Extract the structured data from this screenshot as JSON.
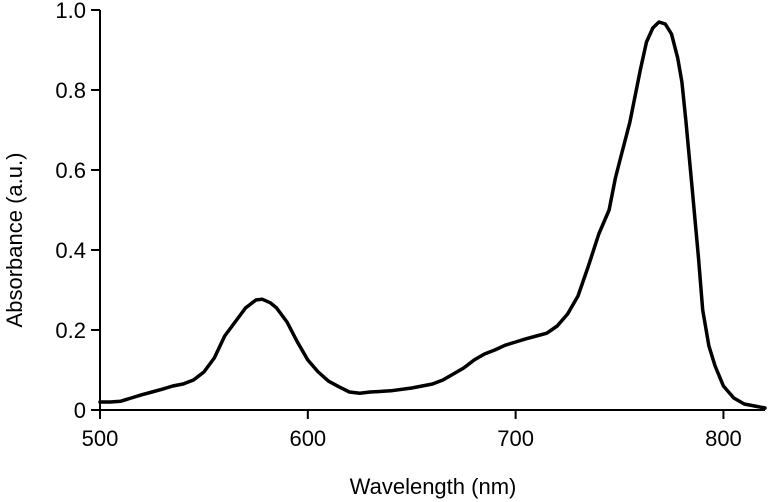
{
  "chart_data": {
    "type": "line",
    "title": "",
    "xlabel": "Wavelength (nm)",
    "ylabel": "Absorbance (a.u.)",
    "xlim": [
      500,
      820
    ],
    "ylim": [
      0,
      1.0
    ],
    "x_ticks": [
      500,
      600,
      700,
      800
    ],
    "x_tick_labels": [
      "500",
      "600",
      "700",
      "800"
    ],
    "y_ticks": [
      0,
      0.2,
      0.4,
      0.6,
      0.8,
      1.0
    ],
    "y_tick_labels": [
      "0",
      "0.2",
      "0.4",
      "0.6",
      "0.8",
      "1.0"
    ],
    "grid": false,
    "legend": "none",
    "line_color": "#000000",
    "series": [
      {
        "x": [
          500,
          505,
          510,
          515,
          520,
          525,
          530,
          535,
          540,
          545,
          550,
          555,
          560,
          565,
          570,
          575,
          578,
          582,
          585,
          590,
          595,
          600,
          605,
          610,
          615,
          620,
          625,
          630,
          640,
          650,
          660,
          665,
          670,
          675,
          680,
          685,
          690,
          695,
          700,
          705,
          710,
          715,
          720,
          725,
          730,
          735,
          740,
          745,
          748,
          750,
          755,
          760,
          763,
          766,
          769,
          772,
          775,
          778,
          780,
          782,
          785,
          788,
          790,
          793,
          796,
          800,
          805,
          810,
          815,
          820
        ],
        "y": [
          0.02,
          0.02,
          0.022,
          0.03,
          0.038,
          0.045,
          0.052,
          0.06,
          0.065,
          0.075,
          0.095,
          0.13,
          0.185,
          0.22,
          0.255,
          0.275,
          0.277,
          0.268,
          0.255,
          0.22,
          0.17,
          0.125,
          0.095,
          0.072,
          0.058,
          0.045,
          0.042,
          0.045,
          0.048,
          0.055,
          0.065,
          0.075,
          0.09,
          0.105,
          0.125,
          0.14,
          0.15,
          0.162,
          0.17,
          0.178,
          0.185,
          0.192,
          0.21,
          0.24,
          0.285,
          0.36,
          0.44,
          0.5,
          0.58,
          0.62,
          0.72,
          0.85,
          0.92,
          0.955,
          0.97,
          0.965,
          0.94,
          0.88,
          0.82,
          0.72,
          0.55,
          0.38,
          0.25,
          0.16,
          0.11,
          0.06,
          0.03,
          0.015,
          0.01,
          0.005
        ]
      }
    ]
  }
}
